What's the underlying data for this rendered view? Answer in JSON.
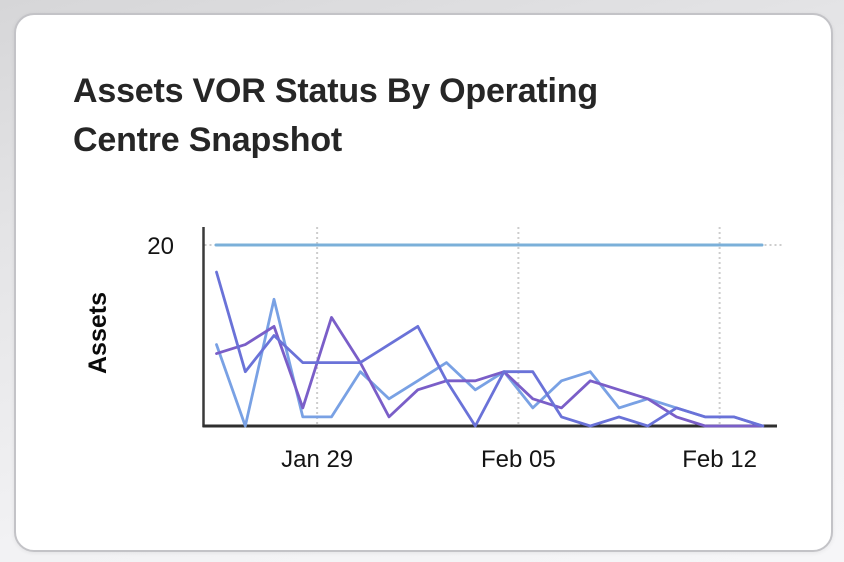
{
  "page": {
    "background_top_color": "#d6d6d8",
    "background_bottom_color": "#f6f6f8"
  },
  "card": {
    "background": "#ffffff",
    "border_color": "#c3c3c7",
    "title": "Assets VOR Status By Operating Centre Snapshot",
    "title_lines": [
      "Assets VOR Status By Operating",
      "Centre Snapshot"
    ]
  },
  "chart_data": {
    "type": "line",
    "title": "Assets VOR Status By Operating Centre Snapshot",
    "xlabel": "",
    "ylabel": "Assets",
    "ylim": [
      0,
      20
    ],
    "y_ticks": [
      20
    ],
    "x_tick_labels": [
      "Jan 29",
      "Feb 05",
      "Feb 12"
    ],
    "x_tick_positions": [
      3.5,
      10.5,
      17.5
    ],
    "num_points": 20,
    "grid": "dotted",
    "legend_position": "none",
    "axis_color": "#3a3a3a",
    "grid_color": "#cdcdcd",
    "tick_text_color": "#141414",
    "series": [
      {
        "name": "limit-line-20",
        "color": "#7bb0d9",
        "width": 3,
        "values": [
          20,
          20,
          20,
          20,
          20,
          20,
          20,
          20,
          20,
          20,
          20,
          20,
          20,
          20,
          20,
          20,
          20,
          20,
          20,
          20
        ]
      },
      {
        "name": "series-blue",
        "color": "#79a1e4",
        "width": 2.8,
        "values": [
          9,
          0,
          14,
          1,
          1,
          6,
          3,
          5,
          7,
          4,
          6,
          2,
          5,
          6,
          2,
          3,
          2,
          1,
          1,
          0
        ]
      },
      {
        "name": "series-purple",
        "color": "#7a5ec8",
        "width": 2.8,
        "values": [
          8,
          9,
          11,
          2,
          12,
          7,
          1,
          4,
          5,
          5,
          6,
          3,
          2,
          5,
          4,
          3,
          1,
          0,
          0,
          0
        ]
      },
      {
        "name": "series-blue-violet",
        "color": "#6a72d8",
        "width": 2.8,
        "values": [
          17,
          6,
          10,
          7,
          7,
          7,
          9,
          11,
          5,
          0,
          6,
          6,
          1,
          0,
          1,
          0,
          2,
          1,
          1,
          0
        ]
      }
    ]
  }
}
